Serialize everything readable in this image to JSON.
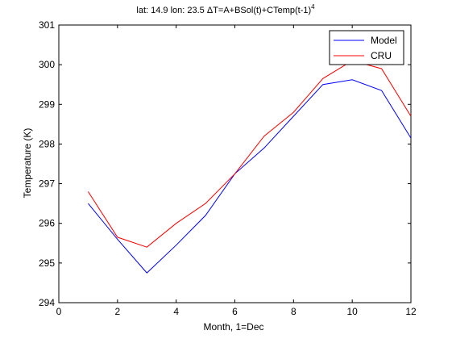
{
  "chart_data": {
    "type": "line",
    "title": "lat: 14.9 lon: 23.5  ΔT=A+BSol(t)+CTemp(t-1)",
    "title_superscript": "4",
    "xlabel": "Month, 1=Dec",
    "ylabel": "Temperature (K)",
    "xlim": [
      0,
      12
    ],
    "ylim": [
      294,
      301
    ],
    "x_ticks": [
      "0",
      "2",
      "4",
      "6",
      "8",
      "10",
      "12"
    ],
    "y_ticks": [
      "294",
      "295",
      "296",
      "297",
      "298",
      "299",
      "300",
      "301"
    ],
    "grid": false,
    "legend_position": "top-right",
    "x": [
      1,
      2,
      3,
      4,
      5,
      6,
      7,
      8,
      9,
      10,
      11,
      12
    ],
    "series": [
      {
        "name": "Model",
        "color": "#0000ff",
        "values": [
          296.5,
          295.6,
          294.75,
          295.45,
          296.2,
          297.25,
          297.9,
          298.7,
          299.5,
          299.62,
          299.35,
          298.15
        ]
      },
      {
        "name": "CRU",
        "color": "#ff0000",
        "values": [
          296.8,
          295.65,
          295.4,
          296.0,
          296.5,
          297.25,
          298.2,
          298.8,
          299.65,
          300.1,
          299.9,
          298.7
        ]
      }
    ]
  }
}
